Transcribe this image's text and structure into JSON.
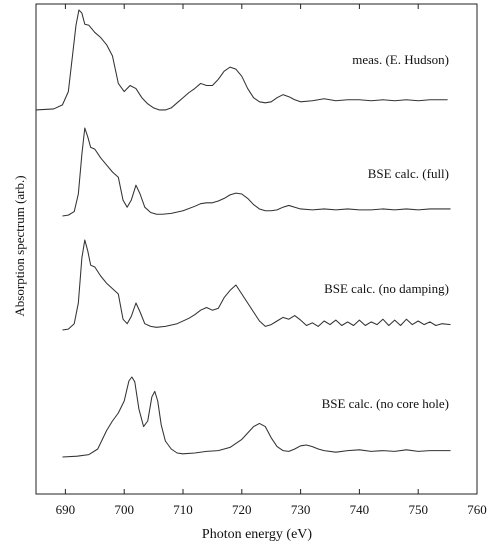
{
  "chart_data": {
    "type": "line",
    "xlabel": "Photon energy (eV)",
    "ylabel": "Absorption spectrum (arb.)",
    "xlim": [
      685,
      760
    ],
    "xticks": [
      690,
      700,
      710,
      720,
      730,
      740,
      750,
      760
    ],
    "y_axis_ticks_labeled": false,
    "grid": false,
    "legend": "none",
    "series": [
      {
        "name": "meas. (E. Hudson)",
        "x": [
          685,
          688,
          689.5,
          690.5,
          691.2,
          691.8,
          692.3,
          692.8,
          693.3,
          694,
          695,
          696,
          697,
          698,
          699,
          700,
          701,
          702,
          703,
          704,
          705,
          706,
          707,
          708,
          709,
          710,
          711,
          712,
          713,
          714,
          715,
          716,
          717,
          718,
          719,
          720,
          721,
          722,
          723,
          724,
          725,
          726,
          727,
          728,
          729,
          730,
          732,
          734,
          736,
          738,
          740,
          742,
          744,
          746,
          748,
          750,
          752,
          754,
          755
        ],
        "y": [
          0.02,
          0.03,
          0.07,
          0.2,
          0.55,
          0.85,
          1.0,
          0.97,
          0.86,
          0.85,
          0.78,
          0.73,
          0.66,
          0.55,
          0.28,
          0.2,
          0.26,
          0.23,
          0.14,
          0.08,
          0.04,
          0.02,
          0.02,
          0.04,
          0.09,
          0.14,
          0.19,
          0.23,
          0.28,
          0.26,
          0.26,
          0.32,
          0.4,
          0.44,
          0.42,
          0.35,
          0.23,
          0.14,
          0.1,
          0.09,
          0.1,
          0.14,
          0.17,
          0.15,
          0.12,
          0.1,
          0.11,
          0.13,
          0.11,
          0.12,
          0.12,
          0.11,
          0.12,
          0.11,
          0.12,
          0.11,
          0.12,
          0.12,
          0.12
        ]
      },
      {
        "name": "BSE calc. (full)",
        "x": [
          689.5,
          690.5,
          691.5,
          692.2,
          692.8,
          693.3,
          693.8,
          694.3,
          695,
          696,
          697,
          698,
          699,
          699.8,
          700.5,
          701.2,
          702,
          702.7,
          703.5,
          704.5,
          705.5,
          706.5,
          708,
          710,
          712,
          713,
          714,
          715,
          716,
          717,
          718,
          719,
          720,
          721,
          722,
          723,
          724,
          725,
          726,
          727,
          728,
          729,
          730,
          732,
          734,
          736,
          738,
          740,
          742,
          744,
          746,
          748,
          750,
          752,
          755.5
        ],
        "y": [
          0.0,
          0.01,
          0.05,
          0.25,
          0.7,
          1.0,
          0.9,
          0.78,
          0.76,
          0.66,
          0.58,
          0.5,
          0.44,
          0.18,
          0.1,
          0.18,
          0.35,
          0.25,
          0.1,
          0.04,
          0.02,
          0.02,
          0.03,
          0.06,
          0.11,
          0.14,
          0.15,
          0.15,
          0.17,
          0.2,
          0.24,
          0.26,
          0.25,
          0.2,
          0.13,
          0.08,
          0.06,
          0.06,
          0.07,
          0.1,
          0.12,
          0.1,
          0.08,
          0.07,
          0.08,
          0.07,
          0.08,
          0.07,
          0.07,
          0.08,
          0.07,
          0.08,
          0.07,
          0.08,
          0.08
        ]
      },
      {
        "name": "BSE calc. (no damping)",
        "x": [
          689.5,
          690.5,
          691.5,
          692.2,
          692.8,
          693.3,
          693.8,
          694.3,
          695,
          696,
          697,
          698,
          699,
          699.8,
          700.5,
          701.2,
          702,
          702.7,
          703.5,
          704.5,
          705.5,
          707,
          709,
          711,
          712,
          713,
          714,
          715,
          716,
          717,
          718,
          719,
          720,
          721,
          722,
          723,
          724,
          725,
          726,
          727,
          728,
          729,
          730,
          731,
          732,
          733,
          734,
          735,
          736,
          737,
          738,
          739,
          740,
          741,
          742,
          743,
          744,
          745,
          746,
          747,
          748,
          749,
          750,
          751,
          752,
          753,
          754,
          755.5
        ],
        "y": [
          0.0,
          0.01,
          0.07,
          0.3,
          0.8,
          1.0,
          0.88,
          0.72,
          0.7,
          0.6,
          0.52,
          0.46,
          0.4,
          0.12,
          0.07,
          0.15,
          0.3,
          0.2,
          0.07,
          0.04,
          0.03,
          0.04,
          0.07,
          0.13,
          0.17,
          0.22,
          0.25,
          0.22,
          0.24,
          0.36,
          0.44,
          0.5,
          0.4,
          0.3,
          0.2,
          0.1,
          0.04,
          0.06,
          0.1,
          0.14,
          0.12,
          0.16,
          0.11,
          0.05,
          0.08,
          0.04,
          0.1,
          0.06,
          0.11,
          0.05,
          0.09,
          0.05,
          0.11,
          0.05,
          0.09,
          0.06,
          0.12,
          0.05,
          0.11,
          0.05,
          0.12,
          0.06,
          0.1,
          0.06,
          0.09,
          0.05,
          0.07,
          0.06
        ]
      },
      {
        "name": "BSE calc. (no core hole)",
        "x": [
          689.5,
          692,
          694,
          695.5,
          697,
          698,
          699,
          700,
          700.8,
          701.3,
          701.8,
          702.5,
          703.3,
          704,
          704.7,
          705.2,
          705.7,
          706.3,
          707,
          708,
          709,
          710,
          712,
          714,
          716,
          718,
          720,
          721,
          722,
          723,
          724,
          725,
          726,
          727,
          728,
          729,
          730,
          731,
          732,
          733,
          734,
          736,
          738,
          740,
          742,
          744,
          746,
          748,
          750,
          752,
          755.5
        ],
        "y": [
          0.0,
          0.01,
          0.03,
          0.1,
          0.33,
          0.45,
          0.55,
          0.7,
          0.95,
          1.0,
          0.94,
          0.6,
          0.38,
          0.45,
          0.75,
          0.82,
          0.7,
          0.4,
          0.2,
          0.1,
          0.05,
          0.04,
          0.05,
          0.07,
          0.08,
          0.12,
          0.22,
          0.3,
          0.38,
          0.42,
          0.38,
          0.24,
          0.13,
          0.08,
          0.07,
          0.1,
          0.14,
          0.15,
          0.13,
          0.1,
          0.08,
          0.06,
          0.08,
          0.09,
          0.07,
          0.08,
          0.07,
          0.09,
          0.07,
          0.08,
          0.08
        ]
      }
    ]
  }
}
